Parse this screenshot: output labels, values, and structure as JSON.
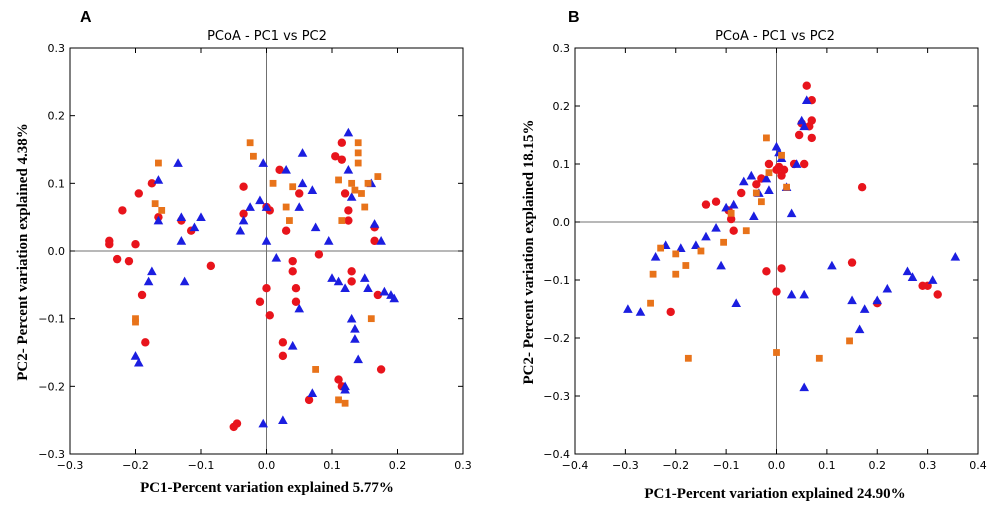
{
  "colors": {
    "red": "#e8141c",
    "blue": "#1b1ee0",
    "orange": "#e8731a",
    "axis": "#000000",
    "zero_line": "#707070"
  },
  "chart_data": [
    {
      "type": "scatter",
      "panel_label": "A",
      "title": "PCoA - PC1 vs PC2",
      "xlabel": "PC1-Percent variation explained 5.77%",
      "ylabel": "PC2- Percent variation explained 4.38%",
      "xlim": [
        -0.3,
        0.3
      ],
      "ylim": [
        -0.3,
        0.3
      ],
      "xticks": [
        "−0.3",
        "−0.2",
        "−0.1",
        "0.0",
        "0.1",
        "0.2",
        "0.3"
      ],
      "yticks": [
        "−0.3",
        "−0.2",
        "−0.1",
        "0.0",
        "0.1",
        "0.2",
        "0.3"
      ],
      "grid": false,
      "series": [
        {
          "marker": "circle",
          "color": "#e8141c",
          "points": [
            [
              -0.24,
              0.015
            ],
            [
              -0.24,
              0.01
            ],
            [
              -0.228,
              -0.012
            ],
            [
              -0.22,
              0.06
            ],
            [
              -0.21,
              -0.015
            ],
            [
              -0.2,
              0.01
            ],
            [
              -0.195,
              0.085
            ],
            [
              -0.19,
              -0.065
            ],
            [
              -0.185,
              -0.135
            ],
            [
              -0.175,
              0.1
            ],
            [
              -0.165,
              0.05
            ],
            [
              -0.13,
              0.045
            ],
            [
              -0.115,
              0.03
            ],
            [
              -0.085,
              -0.022
            ],
            [
              -0.045,
              -0.255
            ],
            [
              -0.05,
              -0.26
            ],
            [
              -0.035,
              0.095
            ],
            [
              -0.035,
              0.055
            ],
            [
              0.0,
              0.065
            ],
            [
              0.005,
              0.06
            ],
            [
              0.0,
              -0.055
            ],
            [
              -0.01,
              -0.075
            ],
            [
              0.005,
              -0.095
            ],
            [
              0.02,
              0.12
            ],
            [
              0.03,
              0.03
            ],
            [
              0.04,
              -0.015
            ],
            [
              0.04,
              -0.03
            ],
            [
              0.045,
              -0.055
            ],
            [
              0.045,
              -0.075
            ],
            [
              0.05,
              0.085
            ],
            [
              0.025,
              -0.135
            ],
            [
              0.025,
              -0.155
            ],
            [
              0.08,
              -0.005
            ],
            [
              0.065,
              -0.22
            ],
            [
              0.105,
              0.14
            ],
            [
              0.115,
              0.16
            ],
            [
              0.115,
              0.135
            ],
            [
              0.12,
              0.085
            ],
            [
              0.125,
              0.045
            ],
            [
              0.125,
              0.06
            ],
            [
              0.13,
              -0.03
            ],
            [
              0.13,
              -0.045
            ],
            [
              0.165,
              0.035
            ],
            [
              0.165,
              0.015
            ],
            [
              0.17,
              -0.065
            ],
            [
              0.175,
              -0.175
            ],
            [
              0.11,
              -0.19
            ],
            [
              0.115,
              -0.2
            ]
          ]
        },
        {
          "marker": "triangle",
          "color": "#1b1ee0",
          "points": [
            [
              -0.18,
              -0.045
            ],
            [
              -0.175,
              -0.03
            ],
            [
              -0.195,
              -0.165
            ],
            [
              -0.2,
              -0.155
            ],
            [
              -0.165,
              0.105
            ],
            [
              -0.165,
              0.045
            ],
            [
              -0.135,
              0.13
            ],
            [
              -0.13,
              0.05
            ],
            [
              -0.13,
              0.015
            ],
            [
              -0.125,
              -0.045
            ],
            [
              -0.11,
              0.035
            ],
            [
              -0.1,
              0.05
            ],
            [
              -0.04,
              0.03
            ],
            [
              -0.035,
              0.045
            ],
            [
              -0.025,
              0.065
            ],
            [
              -0.01,
              0.075
            ],
            [
              -0.005,
              0.13
            ],
            [
              0.0,
              0.065
            ],
            [
              0.0,
              0.015
            ],
            [
              0.015,
              -0.01
            ],
            [
              0.03,
              0.12
            ],
            [
              0.055,
              0.145
            ],
            [
              0.055,
              0.1
            ],
            [
              0.05,
              0.065
            ],
            [
              0.05,
              -0.085
            ],
            [
              0.04,
              -0.14
            ],
            [
              0.07,
              -0.21
            ],
            [
              -0.005,
              -0.255
            ],
            [
              0.025,
              -0.25
            ],
            [
              0.07,
              0.09
            ],
            [
              0.075,
              0.035
            ],
            [
              0.095,
              0.015
            ],
            [
              0.1,
              -0.04
            ],
            [
              0.11,
              -0.045
            ],
            [
              0.12,
              -0.055
            ],
            [
              0.125,
              0.175
            ],
            [
              0.125,
              0.12
            ],
            [
              0.13,
              0.08
            ],
            [
              0.13,
              -0.1
            ],
            [
              0.135,
              -0.115
            ],
            [
              0.135,
              -0.13
            ],
            [
              0.14,
              -0.16
            ],
            [
              0.15,
              -0.04
            ],
            [
              0.155,
              -0.055
            ],
            [
              0.16,
              0.1
            ],
            [
              0.165,
              0.04
            ],
            [
              0.175,
              0.015
            ],
            [
              0.18,
              -0.06
            ],
            [
              0.19,
              -0.065
            ],
            [
              0.195,
              -0.07
            ],
            [
              0.12,
              -0.2
            ],
            [
              0.12,
              -0.205
            ]
          ]
        },
        {
          "marker": "square",
          "color": "#e8731a",
          "points": [
            [
              -0.2,
              -0.1
            ],
            [
              -0.2,
              -0.105
            ],
            [
              -0.165,
              0.13
            ],
            [
              -0.17,
              0.07
            ],
            [
              -0.16,
              0.06
            ],
            [
              -0.025,
              0.16
            ],
            [
              -0.02,
              0.14
            ],
            [
              0.01,
              0.1
            ],
            [
              0.03,
              0.065
            ],
            [
              0.035,
              0.045
            ],
            [
              0.04,
              0.095
            ],
            [
              0.075,
              -0.175
            ],
            [
              0.11,
              0.105
            ],
            [
              0.115,
              0.045
            ],
            [
              0.11,
              -0.22
            ],
            [
              0.12,
              -0.225
            ],
            [
              0.13,
              0.1
            ],
            [
              0.135,
              0.09
            ],
            [
              0.14,
              0.16
            ],
            [
              0.14,
              0.145
            ],
            [
              0.14,
              0.13
            ],
            [
              0.145,
              0.085
            ],
            [
              0.15,
              0.065
            ],
            [
              0.155,
              0.1
            ],
            [
              0.17,
              0.11
            ],
            [
              0.16,
              -0.1
            ]
          ]
        }
      ]
    },
    {
      "type": "scatter",
      "panel_label": "B",
      "title": "PCoA - PC1 vs PC2",
      "xlabel": "PC1-Percent variation explained 24.90%",
      "ylabel": "PC2- Percent variation explained 18.15%",
      "xlim": [
        -0.4,
        0.4
      ],
      "ylim": [
        -0.4,
        0.3
      ],
      "xticks": [
        "−0.4",
        "−0.3",
        "−0.2",
        "−0.1",
        "0.0",
        "0.1",
        "0.2",
        "0.3",
        "0.4"
      ],
      "yticks": [
        "−0.4",
        "−0.3",
        "−0.2",
        "−0.1",
        "0.0",
        "0.1",
        "0.2",
        "0.3"
      ],
      "grid": false,
      "series": [
        {
          "marker": "circle",
          "color": "#e8141c",
          "points": [
            [
              -0.21,
              -0.155
            ],
            [
              -0.14,
              0.03
            ],
            [
              -0.12,
              0.035
            ],
            [
              -0.095,
              0.02
            ],
            [
              -0.09,
              0.005
            ],
            [
              -0.085,
              -0.015
            ],
            [
              -0.07,
              0.05
            ],
            [
              -0.04,
              0.065
            ],
            [
              -0.03,
              0.075
            ],
            [
              -0.02,
              -0.085
            ],
            [
              0.0,
              -0.12
            ],
            [
              0.01,
              -0.08
            ],
            [
              -0.015,
              0.1
            ],
            [
              0.0,
              0.09
            ],
            [
              0.005,
              0.095
            ],
            [
              0.01,
              0.08
            ],
            [
              0.015,
              0.09
            ],
            [
              0.035,
              0.1
            ],
            [
              0.045,
              0.15
            ],
            [
              0.05,
              0.17
            ],
            [
              0.055,
              0.1
            ],
            [
              0.06,
              0.235
            ],
            [
              0.065,
              0.165
            ],
            [
              0.07,
              0.21
            ],
            [
              0.07,
              0.175
            ],
            [
              0.07,
              0.145
            ],
            [
              0.17,
              0.06
            ],
            [
              0.15,
              -0.07
            ],
            [
              0.2,
              -0.14
            ],
            [
              0.29,
              -0.11
            ],
            [
              0.3,
              -0.11
            ],
            [
              0.32,
              -0.125
            ]
          ]
        },
        {
          "marker": "triangle",
          "color": "#1b1ee0",
          "points": [
            [
              -0.295,
              -0.15
            ],
            [
              -0.27,
              -0.155
            ],
            [
              -0.24,
              -0.06
            ],
            [
              -0.22,
              -0.04
            ],
            [
              -0.19,
              -0.045
            ],
            [
              -0.16,
              -0.04
            ],
            [
              -0.14,
              -0.025
            ],
            [
              -0.12,
              -0.01
            ],
            [
              -0.11,
              -0.075
            ],
            [
              -0.1,
              0.025
            ],
            [
              -0.085,
              0.03
            ],
            [
              -0.08,
              -0.14
            ],
            [
              -0.065,
              0.07
            ],
            [
              -0.05,
              0.08
            ],
            [
              -0.045,
              0.01
            ],
            [
              -0.035,
              0.05
            ],
            [
              -0.02,
              0.075
            ],
            [
              -0.015,
              0.055
            ],
            [
              0.0,
              0.13
            ],
            [
              0.005,
              0.12
            ],
            [
              0.01,
              0.11
            ],
            [
              0.02,
              0.06
            ],
            [
              0.03,
              0.015
            ],
            [
              0.03,
              -0.125
            ],
            [
              0.04,
              0.1
            ],
            [
              0.05,
              0.175
            ],
            [
              0.055,
              0.165
            ],
            [
              0.06,
              0.21
            ],
            [
              0.055,
              -0.125
            ],
            [
              0.055,
              -0.285
            ],
            [
              0.11,
              -0.075
            ],
            [
              0.15,
              -0.135
            ],
            [
              0.165,
              -0.185
            ],
            [
              0.175,
              -0.15
            ],
            [
              0.2,
              -0.135
            ],
            [
              0.22,
              -0.115
            ],
            [
              0.26,
              -0.085
            ],
            [
              0.27,
              -0.095
            ],
            [
              0.31,
              -0.1
            ],
            [
              0.355,
              -0.06
            ]
          ]
        },
        {
          "marker": "square",
          "color": "#e8731a",
          "points": [
            [
              -0.25,
              -0.14
            ],
            [
              -0.245,
              -0.09
            ],
            [
              -0.23,
              -0.045
            ],
            [
              -0.2,
              -0.055
            ],
            [
              -0.2,
              -0.09
            ],
            [
              -0.18,
              -0.075
            ],
            [
              -0.175,
              -0.235
            ],
            [
              -0.15,
              -0.05
            ],
            [
              -0.105,
              -0.035
            ],
            [
              -0.09,
              0.015
            ],
            [
              -0.06,
              -0.015
            ],
            [
              -0.04,
              0.05
            ],
            [
              -0.03,
              0.035
            ],
            [
              -0.02,
              0.145
            ],
            [
              -0.015,
              0.085
            ],
            [
              0.0,
              -0.225
            ],
            [
              0.01,
              0.115
            ],
            [
              0.02,
              0.06
            ],
            [
              0.085,
              -0.235
            ],
            [
              0.145,
              -0.205
            ]
          ]
        }
      ]
    }
  ]
}
